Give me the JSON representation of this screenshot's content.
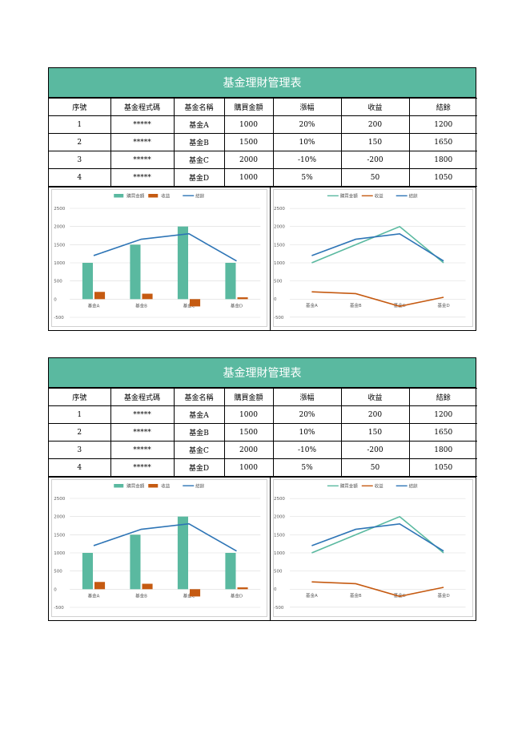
{
  "colors": {
    "header": "#5ab9a0",
    "teal": "#5ab9a0",
    "orange": "#c55a11",
    "blue": "#2e75b6"
  },
  "tables": [
    {
      "title": "基金理財管理表",
      "columns": [
        "序號",
        "基金程式碼",
        "基金名稱",
        "購買金額",
        "漲幅",
        "收益",
        "結餘"
      ],
      "rows": [
        [
          "1",
          "*****",
          "基金A",
          "1000",
          "20%",
          "200",
          "1200"
        ],
        [
          "2",
          "*****",
          "基金B",
          "1500",
          "10%",
          "150",
          "1650"
        ],
        [
          "3",
          "*****",
          "基金C",
          "2000",
          "-10%",
          "-200",
          "1800"
        ],
        [
          "4",
          "*****",
          "基金D",
          "1000",
          "5%",
          "50",
          "1050"
        ]
      ]
    },
    {
      "title": "基金理財管理表",
      "columns": [
        "序號",
        "基金程式碼",
        "基金名稱",
        "購買金額",
        "漲幅",
        "收益",
        "結餘"
      ],
      "rows": [
        [
          "1",
          "*****",
          "基金A",
          "1000",
          "20%",
          "200",
          "1200"
        ],
        [
          "2",
          "*****",
          "基金B",
          "1500",
          "10%",
          "150",
          "1650"
        ],
        [
          "3",
          "*****",
          "基金C",
          "2000",
          "-10%",
          "-200",
          "1800"
        ],
        [
          "4",
          "*****",
          "基金D",
          "1000",
          "5%",
          "50",
          "1050"
        ]
      ]
    }
  ],
  "chart_data": [
    {
      "type": "bar",
      "categories": [
        "基金A",
        "基金B",
        "基金C",
        "基金D"
      ],
      "series": [
        {
          "name": "購買金額",
          "kind": "bar",
          "values": [
            1000,
            1500,
            2000,
            1000
          ]
        },
        {
          "name": "收益",
          "kind": "bar",
          "values": [
            200,
            150,
            -200,
            50
          ]
        },
        {
          "name": "結餘",
          "kind": "line",
          "values": [
            1200,
            1650,
            1800,
            1050
          ]
        }
      ],
      "yticks": [
        -500,
        0,
        500,
        1000,
        1500,
        2000,
        2500
      ],
      "ylim": [
        -500,
        2500
      ],
      "grid": true,
      "legend": "top"
    },
    {
      "type": "line",
      "categories": [
        "基金A",
        "基金B",
        "基金C",
        "基金D"
      ],
      "series": [
        {
          "name": "購買金額",
          "values": [
            1000,
            1500,
            2000,
            1000
          ]
        },
        {
          "name": "收益",
          "values": [
            200,
            150,
            -200,
            50
          ]
        },
        {
          "name": "結餘",
          "values": [
            1200,
            1650,
            1800,
            1050
          ]
        }
      ],
      "yticks": [
        -500,
        0,
        500,
        1000,
        1500,
        2000,
        2500
      ],
      "ylim": [
        -500,
        2500
      ],
      "grid": true,
      "legend": "top"
    }
  ]
}
